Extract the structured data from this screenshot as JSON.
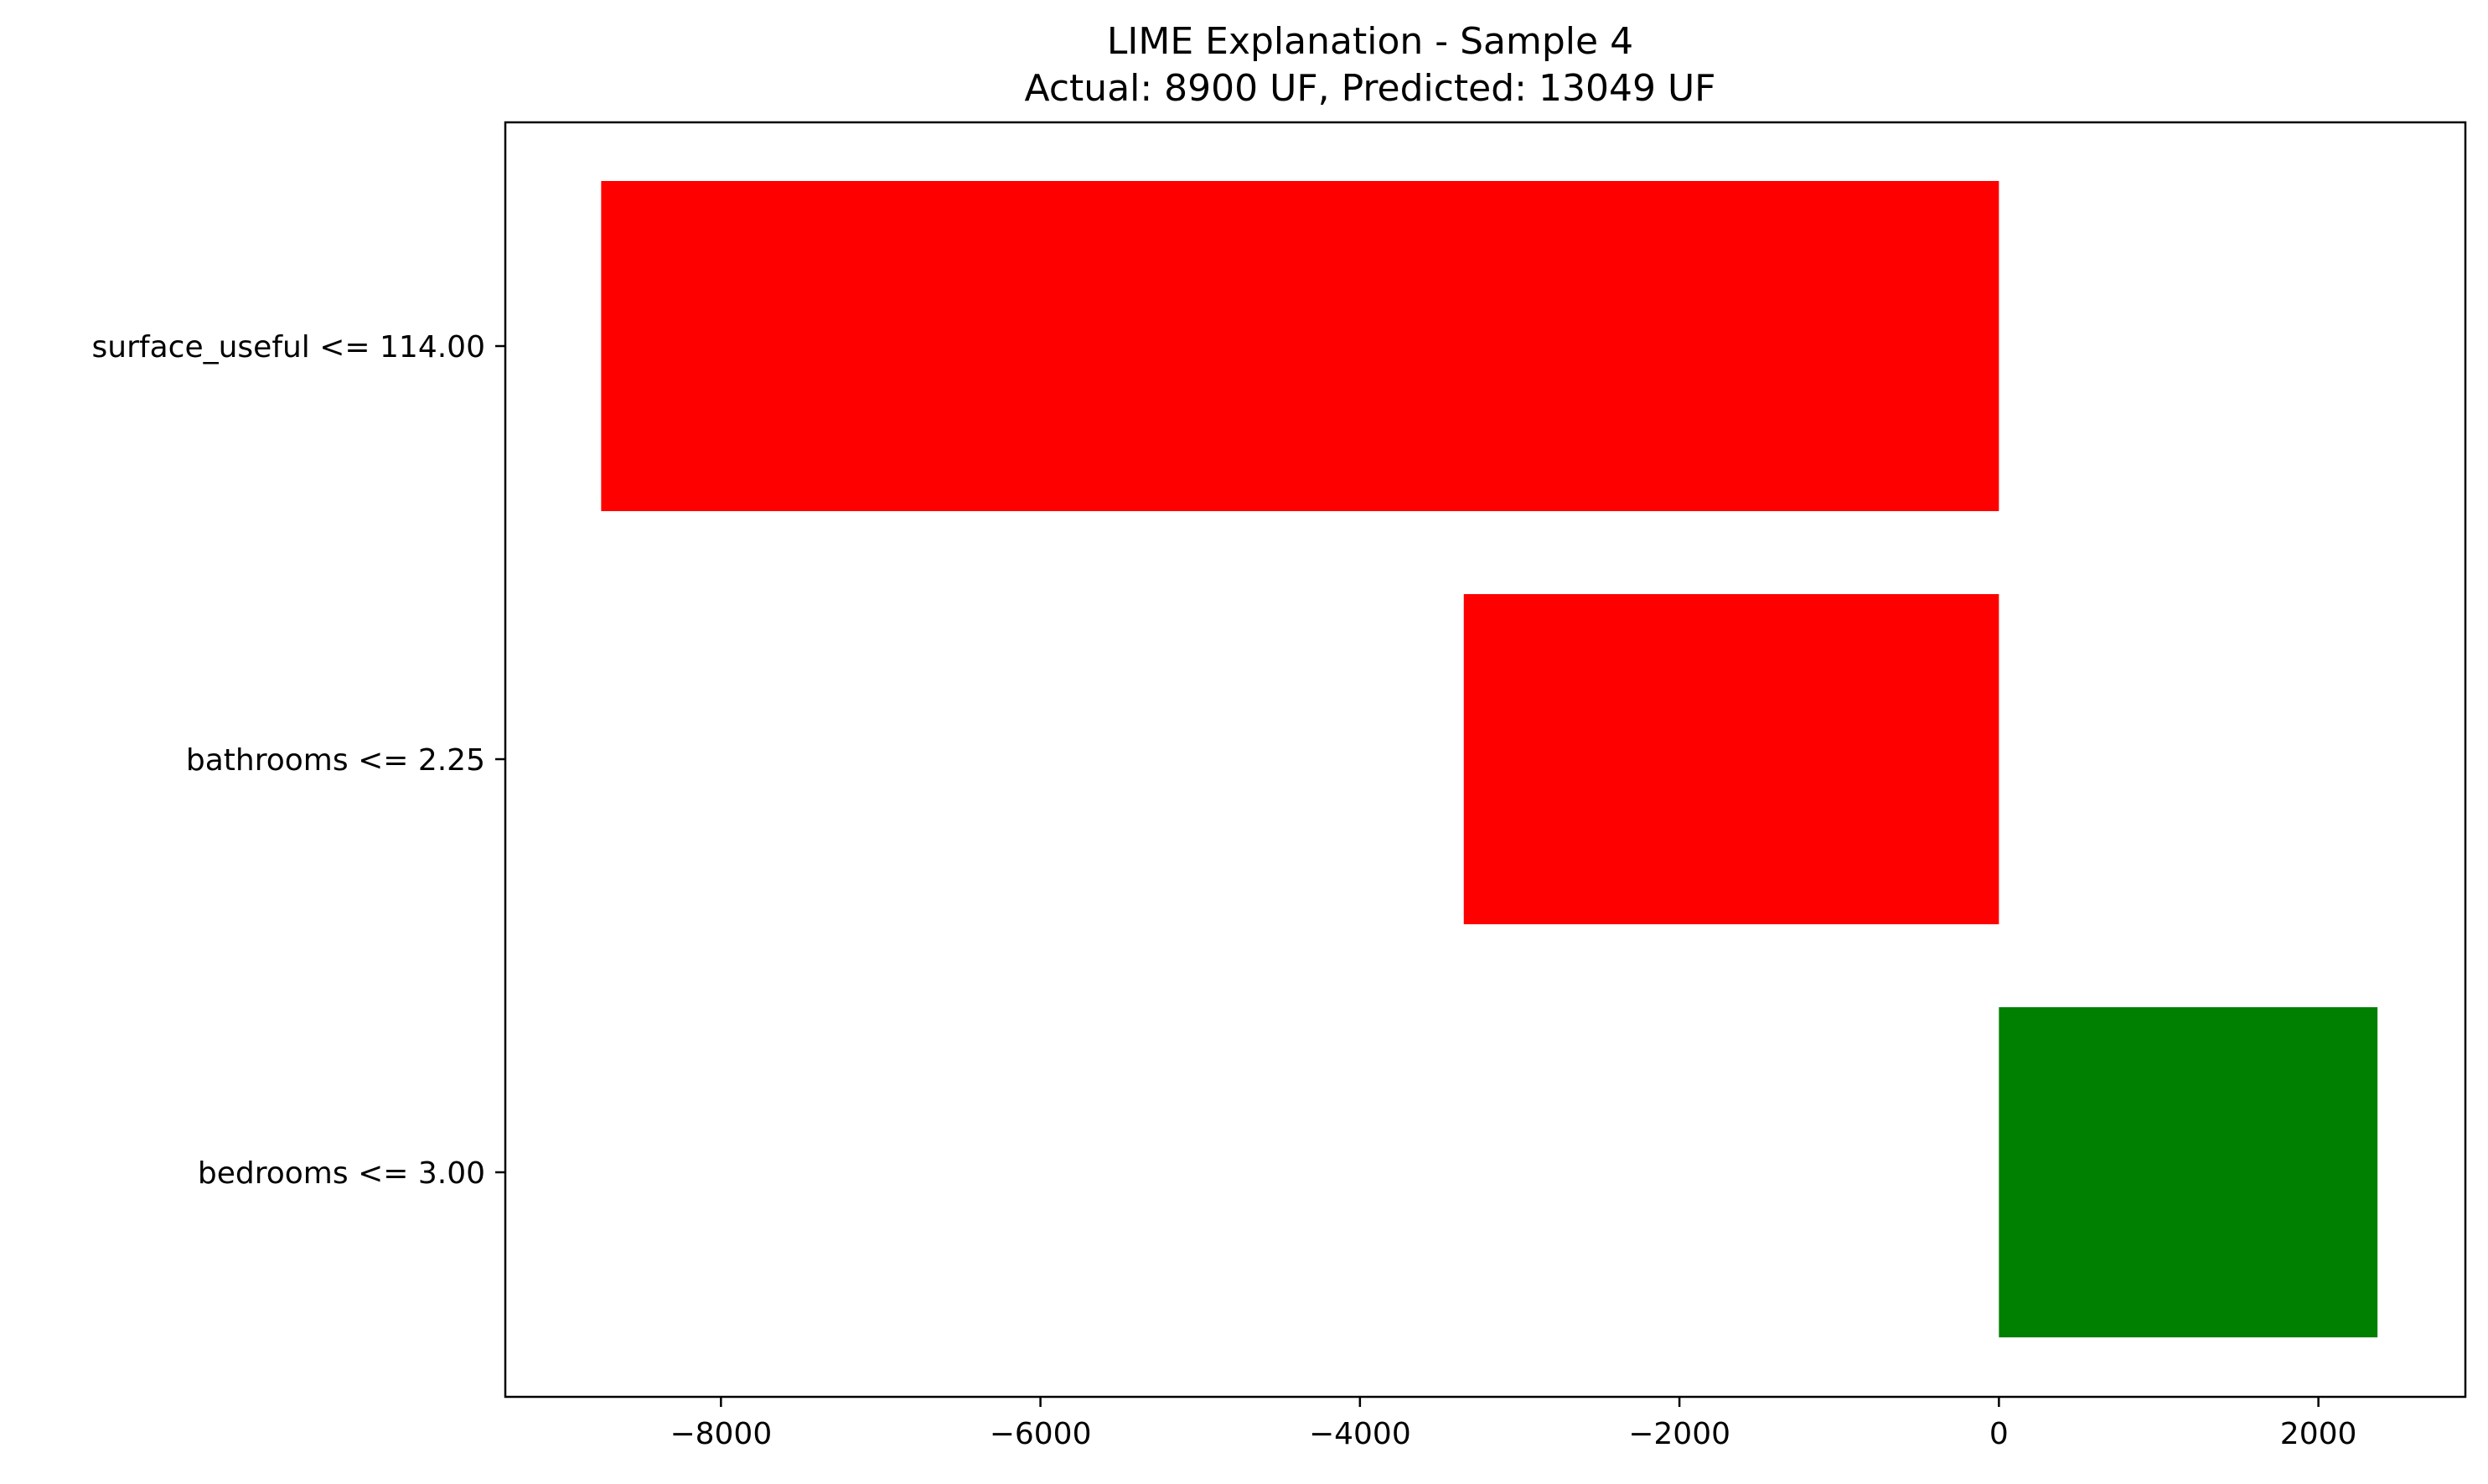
{
  "chart_data": {
    "type": "bar",
    "orientation": "horizontal",
    "title": "LIME Explanation - Sample 4",
    "subtitle": "Actual: 8900 UF, Predicted: 13049 UF",
    "categories": [
      "surface_useful <= 114.00",
      "bathrooms <= 2.25",
      "bedrooms <= 3.00"
    ],
    "values": [
      -8750,
      -3350,
      2370
    ],
    "bar_colors": [
      "#ff0000",
      "#ff0000",
      "#008000"
    ],
    "xlim": [
      -9350,
      2920
    ],
    "x_ticks": [
      -8000,
      -6000,
      -4000,
      -2000,
      0,
      2000
    ],
    "x_tick_labels": [
      "−8000",
      "−6000",
      "−4000",
      "−2000",
      "0",
      "2000"
    ],
    "xlabel": "",
    "ylabel": "",
    "grid": false,
    "legend": "none"
  }
}
